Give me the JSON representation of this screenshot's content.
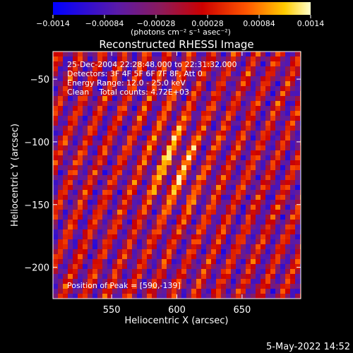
{
  "chart_data": {
    "type": "heatmap",
    "title": "Reconstructed RHESSI Image",
    "xlabel": "Heliocentric X (arcsec)",
    "ylabel": "Heliocentric Y (arcsec)",
    "xlim": [
      505,
      695
    ],
    "ylim": [
      -225,
      -28
    ],
    "xticks": [
      550,
      600,
      650
    ],
    "yticks": [
      -50,
      -100,
      -150,
      -200
    ],
    "colorbar": {
      "range": [
        -0.0014,
        0.0014
      ],
      "ticks": [
        "-0.0014",
        "-0.00084",
        "-0.00028",
        "0.00028",
        "0.00084",
        "0.0014"
      ],
      "units_label": "(photons cm⁻² s⁻¹ asec⁻²)",
      "colormap": "rhessi-blue-red-yellow",
      "colors": [
        "#0000ff",
        "#5a1aa8",
        "#8c1a5a",
        "#cc0000",
        "#ff5500",
        "#ffcc00",
        "#ffffcc"
      ]
    },
    "annotations": [
      "25-Dec-2004 22:28:48.000 to 22:31:32.000",
      "Detectors: 3F 4F 5F 6F 7F 8F, Att 0",
      "Energy Range: 12.0 - 25.0 keV",
      "Clean    Total counts: 4.72E+03"
    ],
    "peak_label": "Position of Peak = [590,-139]",
    "peak": [
      590,
      -139
    ],
    "grid": false
  },
  "footer": {
    "timestamp": "5-May-2022 14:52"
  }
}
